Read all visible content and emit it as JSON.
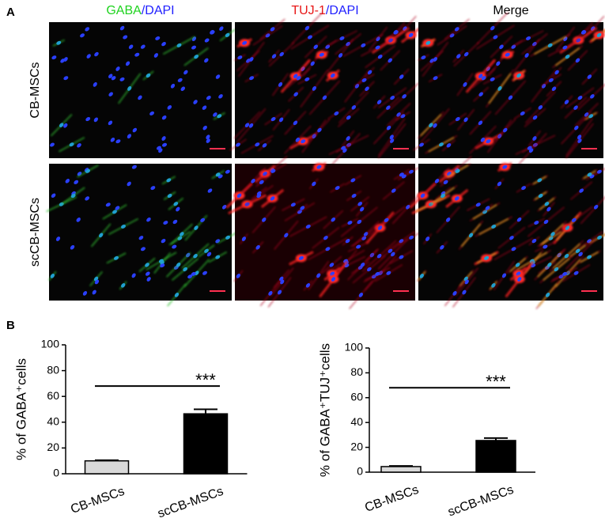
{
  "figure": {
    "panel_labels": [
      "A",
      "B"
    ],
    "columns": [
      {
        "parts": [
          "GABA",
          "/",
          "DAPI"
        ],
        "colors": [
          "#1fd31f",
          "#2020ff",
          "#2020ff"
        ]
      },
      {
        "parts": [
          "TUJ-1",
          "/",
          "DAPI"
        ],
        "colors": [
          "#e81818",
          "#2020ff",
          "#2020ff"
        ]
      },
      {
        "parts": [
          "Merge"
        ],
        "colors": [
          "#000000"
        ]
      }
    ],
    "rows": [
      "CB-MSCs",
      "scCB-MSCs"
    ]
  },
  "chart_data": [
    {
      "type": "bar",
      "ylabel": "% of GABA⁺cells",
      "categories": [
        "CB-MSCs",
        "scCB-MSCs"
      ],
      "values": [
        10,
        46.5
      ],
      "errors": [
        0.5,
        3.5
      ],
      "colors": [
        "#d9d9d9",
        "#000000"
      ],
      "ylim": [
        0,
        100
      ],
      "yticks": [
        0,
        20,
        40,
        60,
        80,
        100
      ],
      "annotation": "***"
    },
    {
      "type": "bar",
      "ylabel": "% of GABA⁺TUJ⁺cells",
      "categories": [
        "CB-MSCs",
        "scCB-MSCs"
      ],
      "values": [
        4.5,
        25.5
      ],
      "errors": [
        0.5,
        2
      ],
      "colors": [
        "#d9d9d9",
        "#000000"
      ],
      "ylim": [
        0,
        100
      ],
      "yticks": [
        0,
        20,
        40,
        60,
        80,
        100
      ],
      "annotation": "***"
    }
  ]
}
